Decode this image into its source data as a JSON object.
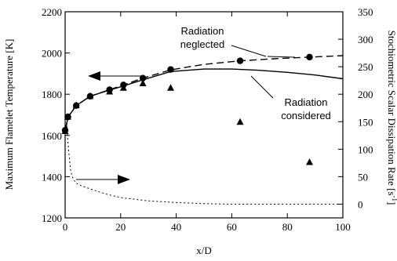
{
  "chart_data": {
    "type": "line",
    "xlabel": "x/D",
    "ylabel_left": "Maximum Flamelet Temperature [K]",
    "ylabel_right": "Stochiometric Scalar Dissipation Rate [s",
    "ylabel_right_sup": "-1",
    "ylabel_right_end": "]",
    "xlim": [
      0,
      100
    ],
    "ylim_left": [
      1200,
      2200
    ],
    "ylim_right": [
      -25,
      350
    ],
    "x_ticks": [
      "0",
      "20",
      "40",
      "60",
      "80",
      "100"
    ],
    "y_left_ticks": [
      "1200",
      "1400",
      "1600",
      "1800",
      "2000",
      "2200"
    ],
    "y_right_ticks": [
      "0",
      "50",
      "100",
      "150",
      "200",
      "250",
      "300",
      "350"
    ],
    "grid": false,
    "annotations": {
      "neglected_line1": "Radiation",
      "neglected_line2": "neglected",
      "considered_line1": "Radiation",
      "considered_line2": "considered"
    },
    "series": [
      {
        "name": "Radiation neglected",
        "style": "dashed",
        "axis": "left",
        "x": [
          0,
          1,
          4,
          9,
          16,
          21,
          28,
          38,
          50,
          63,
          75,
          88,
          100
        ],
        "y": [
          1625,
          1690,
          1745,
          1790,
          1822,
          1845,
          1878,
          1918,
          1945,
          1962,
          1972,
          1980,
          1987
        ]
      },
      {
        "name": "Radiation considered",
        "style": "solid",
        "axis": "left",
        "x": [
          0,
          1,
          4,
          9,
          16,
          21,
          28,
          38,
          50,
          60,
          70,
          80,
          90,
          100
        ],
        "y": [
          1615,
          1688,
          1745,
          1790,
          1820,
          1840,
          1870,
          1910,
          1922,
          1922,
          1916,
          1906,
          1893,
          1875
        ]
      },
      {
        "name": "Scalar dissipation rate",
        "style": "dotted",
        "axis": "right",
        "x": [
          0,
          0.5,
          1,
          1.5,
          2,
          3,
          4,
          6,
          10,
          15,
          20,
          30,
          40,
          50,
          60,
          80,
          100
        ],
        "y": [
          170,
          150,
          115,
          85,
          60,
          45,
          38,
          33,
          26,
          18,
          12,
          6,
          3,
          1,
          0,
          0,
          0
        ]
      },
      {
        "name": "Circles",
        "marker": "circle",
        "axis": "left",
        "x": [
          0,
          1,
          4,
          9,
          16,
          21,
          28,
          38,
          63,
          88
        ],
        "y": [
          1625,
          1690,
          1745,
          1790,
          1822,
          1845,
          1878,
          1920,
          1962,
          1980
        ]
      },
      {
        "name": "Triangles",
        "marker": "triangle",
        "axis": "left",
        "x": [
          0,
          1,
          4,
          9,
          16,
          21,
          28,
          38,
          63,
          88
        ],
        "y": [
          1620,
          1690,
          1745,
          1790,
          1812,
          1830,
          1852,
          1830,
          1665,
          1470
        ]
      }
    ]
  }
}
